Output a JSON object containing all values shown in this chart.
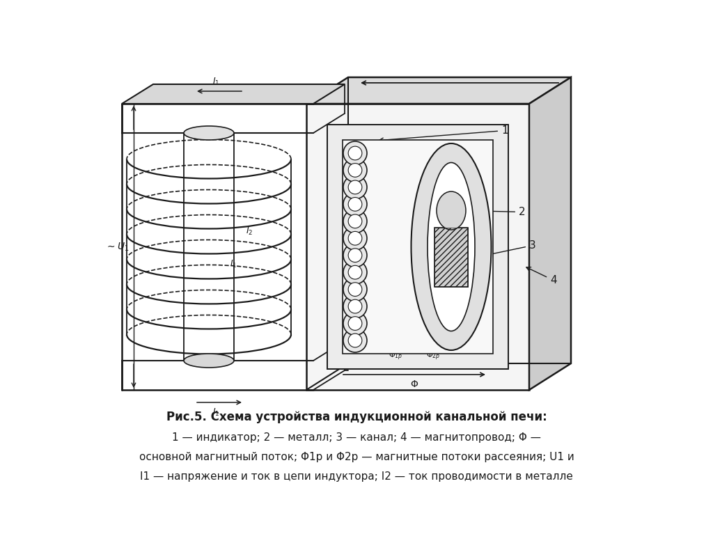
{
  "title_line1": "Рис.5. Схема устройства индукционной канальной печи:",
  "title_line2": "1 — индикатор; 2 — металл; 3 — канал; 4 — магнитопровод; Φ —",
  "title_line3": "основной магнитный поток; Φ1p и Φ2p — магнитные потоки рассеяния; U1 и",
  "title_line4": "I1 — напряжение и ток в цепи индуктора; I2 — ток проводимости в металле",
  "bg_color": "#ffffff",
  "line_color": "#1a1a1a"
}
